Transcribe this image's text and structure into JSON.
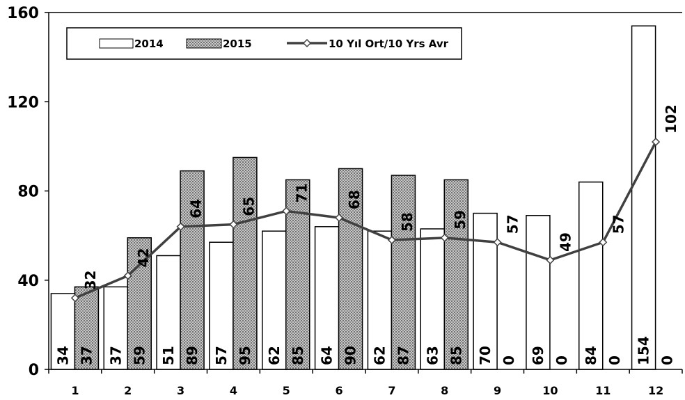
{
  "chart_data": {
    "type": "bar",
    "categories": [
      "1",
      "2",
      "3",
      "4",
      "5",
      "6",
      "7",
      "8",
      "9",
      "10",
      "11",
      "12"
    ],
    "ylim": [
      0,
      160
    ],
    "yticks": [
      0,
      40,
      80,
      120,
      160
    ],
    "grid": false,
    "legend_position": "top-left",
    "series": [
      {
        "name": "2014",
        "kind": "bar",
        "fill": "white",
        "values": [
          34,
          37,
          51,
          57,
          62,
          64,
          62,
          63,
          70,
          69,
          84,
          154
        ]
      },
      {
        "name": "2015",
        "kind": "bar",
        "fill": "dotted-gray",
        "values": [
          37,
          59,
          89,
          95,
          85,
          90,
          87,
          85,
          0,
          0,
          0,
          0
        ]
      },
      {
        "name": "10 Yıl Ort/10 Yrs Avr",
        "kind": "line",
        "marker": "diamond",
        "values": [
          32,
          42,
          64,
          65,
          71,
          68,
          58,
          59,
          57,
          49,
          57,
          102
        ]
      }
    ],
    "colors": {
      "line": "#404040",
      "bar_stroke": "#000000",
      "pattern_bg": "#c8c8c8",
      "pattern_dot": "#707070"
    }
  }
}
